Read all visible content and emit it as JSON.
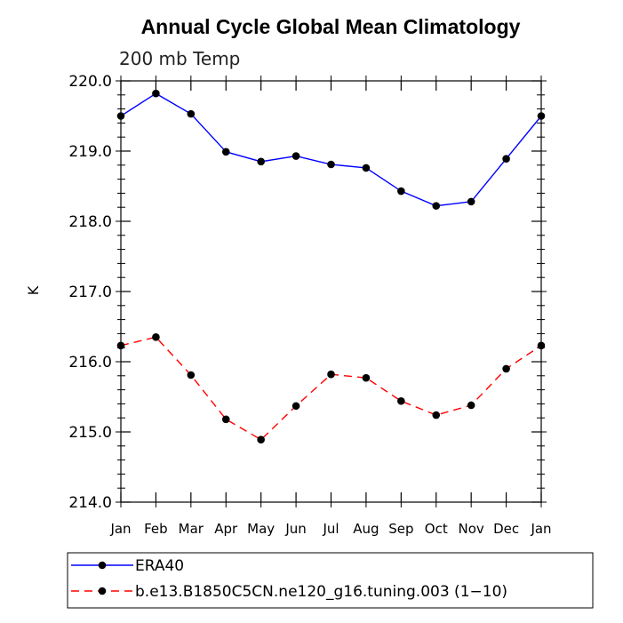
{
  "chart_data": {
    "type": "line",
    "title": "Annual Cycle Global Mean Climatology",
    "subtitle": "200 mb Temp",
    "xlabel": "",
    "ylabel": "K",
    "categories": [
      "Jan",
      "Feb",
      "Mar",
      "Apr",
      "May",
      "Jun",
      "Jul",
      "Aug",
      "Sep",
      "Oct",
      "Nov",
      "Dec",
      "Jan"
    ],
    "ylim": [
      214.0,
      220.0
    ],
    "yticks": [
      "214.0",
      "215.0",
      "216.0",
      "217.0",
      "218.0",
      "219.0",
      "220.0"
    ],
    "grid": false,
    "legend_position": "bottom",
    "series": [
      {
        "name": "ERA40",
        "color": "#0000ff",
        "dash": "solid",
        "values": [
          219.5,
          219.82,
          219.53,
          218.99,
          218.85,
          218.93,
          218.81,
          218.76,
          218.43,
          218.22,
          218.28,
          218.89,
          219.5
        ]
      },
      {
        "name": "b.e13.B1850C5CN.ne120_g16.tuning.003 (1−10)",
        "color": "#ff0000",
        "dash": "dashed",
        "values": [
          216.23,
          216.35,
          215.81,
          215.18,
          214.89,
          215.37,
          215.82,
          215.77,
          215.44,
          215.24,
          215.38,
          215.9,
          216.23
        ]
      }
    ]
  }
}
